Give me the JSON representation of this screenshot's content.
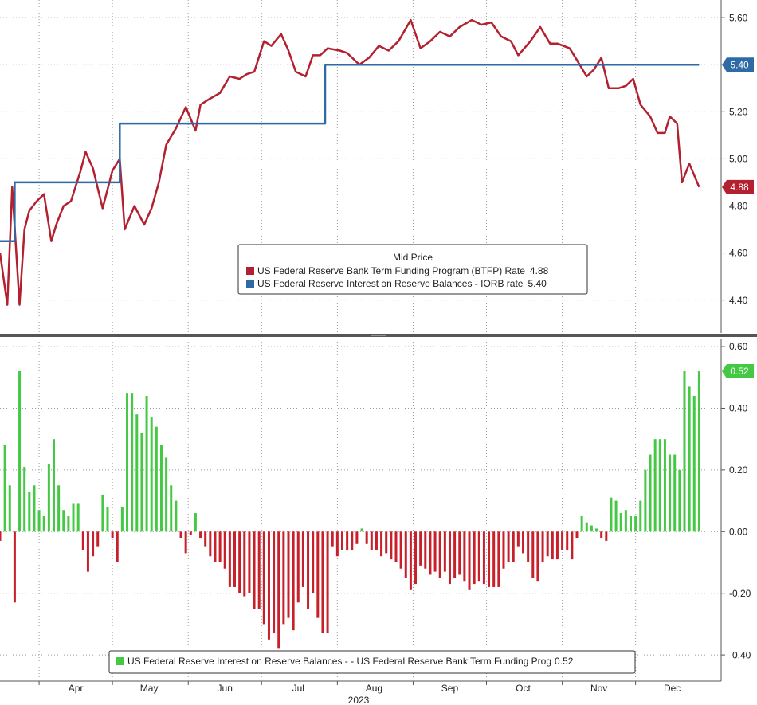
{
  "chart_data": [
    {
      "type": "line",
      "ylim": [
        4.26,
        5.675
      ],
      "yticks": [
        {
          "value": 4.4,
          "label": "4.40"
        },
        {
          "value": 4.6,
          "label": "4.60"
        },
        {
          "value": 4.8,
          "label": "4.80"
        },
        {
          "value": 5.0,
          "label": "5.00"
        },
        {
          "value": 5.2,
          "label": "5.20"
        },
        {
          "value": 5.4,
          "label": "5.40"
        },
        {
          "value": 5.6,
          "label": "5.60"
        }
      ],
      "grid": true,
      "legend_title": "Mid Price",
      "series": [
        {
          "name": "US Federal Reserve Bank Term Funding Program (BTFP) Rate",
          "legend_value": "4.88",
          "color": "#b3202f",
          "x": [
            75,
            78,
            80,
            83,
            85,
            87,
            90,
            93,
            96,
            98,
            101,
            104,
            108,
            110,
            113,
            117,
            121,
            124,
            126,
            130,
            134,
            137,
            140,
            143,
            147,
            151,
            155,
            157,
            160,
            165,
            169,
            173,
            176,
            179,
            183,
            186,
            190,
            193,
            196,
            200,
            203,
            206,
            209,
            214,
            217,
            222,
            226,
            230,
            234,
            238,
            243,
            247,
            251,
            255,
            259,
            263,
            268,
            272,
            276,
            280,
            284,
            287,
            292,
            296,
            300,
            303,
            308,
            311,
            315,
            318,
            321,
            324,
            328,
            331,
            334,
            337,
            341,
            344,
            347,
            349,
            352,
            354,
            357,
            361
          ],
          "values": [
            4.6,
            4.38,
            4.88,
            4.38,
            4.7,
            4.78,
            4.82,
            4.85,
            4.65,
            4.72,
            4.8,
            4.82,
            4.95,
            5.03,
            4.96,
            4.79,
            4.95,
            5.0,
            4.7,
            4.8,
            4.72,
            4.79,
            4.9,
            5.06,
            5.13,
            5.22,
            5.12,
            5.23,
            5.25,
            5.28,
            5.35,
            5.34,
            5.36,
            5.37,
            5.5,
            5.48,
            5.53,
            5.46,
            5.37,
            5.35,
            5.44,
            5.44,
            5.47,
            5.46,
            5.45,
            5.4,
            5.43,
            5.48,
            5.46,
            5.5,
            5.59,
            5.47,
            5.5,
            5.54,
            5.52,
            5.56,
            5.59,
            5.57,
            5.58,
            5.52,
            5.5,
            5.44,
            5.5,
            5.56,
            5.49,
            5.49,
            5.47,
            5.42,
            5.35,
            5.38,
            5.43,
            5.3,
            5.3,
            5.31,
            5.34,
            5.23,
            5.18,
            5.11,
            5.11,
            5.18,
            5.15,
            4.9,
            4.98,
            4.88
          ]
        },
        {
          "name": "US Federal Reserve Interest on Reserve Balances - IORB rate",
          "legend_value": "5.40",
          "color": "#2e6aa6",
          "x": [
            75,
            81,
            81,
            124,
            124,
            208,
            208,
            361
          ],
          "values": [
            4.65,
            4.65,
            4.9,
            4.9,
            5.15,
            5.15,
            5.4,
            5.4
          ]
        }
      ]
    },
    {
      "type": "bar",
      "ylim": [
        -0.485,
        0.626
      ],
      "yticks": [
        {
          "value": -0.4,
          "label": "-0.40"
        },
        {
          "value": -0.2,
          "label": "-0.20"
        },
        {
          "value": 0,
          "label": "0.00"
        },
        {
          "value": 0.2,
          "label": "0.20"
        },
        {
          "value": 0.4,
          "label": "0.40"
        },
        {
          "value": 0.6,
          "label": "0.60"
        }
      ],
      "grid": true,
      "xlim": [
        75,
        370
      ],
      "xticks": [
        {
          "value": 91,
          "label": "Apr"
        },
        {
          "value": 121,
          "label": "May"
        },
        {
          "value": 152,
          "label": "Jun"
        },
        {
          "value": 182,
          "label": "Jul"
        },
        {
          "value": 213,
          "label": "Aug"
        },
        {
          "value": 244,
          "label": "Sep"
        },
        {
          "value": 274,
          "label": "Oct"
        },
        {
          "value": 305,
          "label": "Nov"
        },
        {
          "value": 335,
          "label": "Dec"
        }
      ],
      "xlabel": "2023",
      "series": [
        {
          "name": "US Federal Reserve Interest on Reserve Balances - - US Federal Reserve Bank Term Funding Prog",
          "legend_value": "0.52",
          "color": "#45c945",
          "negative_color": "#c8202b",
          "x": [
            75,
            77,
            79,
            81,
            83,
            85,
            87,
            89,
            91,
            93,
            95,
            97,
            99,
            101,
            103,
            105,
            107,
            109,
            111,
            113,
            115,
            117,
            119,
            121,
            123,
            125,
            127,
            129,
            131,
            133,
            135,
            137,
            139,
            141,
            143,
            145,
            147,
            149,
            151,
            153,
            155,
            157,
            159,
            161,
            163,
            165,
            167,
            169,
            171,
            173,
            175,
            177,
            179,
            181,
            183,
            185,
            187,
            189,
            191,
            193,
            195,
            197,
            199,
            201,
            203,
            205,
            207,
            209,
            211,
            213,
            215,
            217,
            219,
            221,
            223,
            225,
            227,
            229,
            231,
            233,
            235,
            237,
            239,
            241,
            243,
            245,
            247,
            249,
            251,
            253,
            255,
            257,
            259,
            261,
            263,
            265,
            267,
            269,
            271,
            273,
            275,
            277,
            279,
            281,
            283,
            285,
            287,
            289,
            291,
            293,
            295,
            297,
            299,
            301,
            303,
            305,
            307,
            309,
            311,
            313,
            315,
            317,
            319,
            321,
            323,
            325,
            327,
            329,
            331,
            333,
            335,
            337,
            339,
            341,
            343,
            345,
            347,
            349,
            351,
            353,
            355,
            357,
            359,
            361
          ],
          "values": [
            -0.03,
            0.28,
            0.15,
            -0.23,
            0.52,
            0.21,
            0.13,
            0.15,
            0.07,
            0.05,
            0.22,
            0.3,
            0.15,
            0.07,
            0.05,
            0.09,
            0.09,
            -0.06,
            -0.13,
            -0.08,
            -0.05,
            0.12,
            0.08,
            -0.02,
            -0.1,
            0.08,
            0.45,
            0.45,
            0.38,
            0.32,
            0.44,
            0.37,
            0.34,
            0.28,
            0.24,
            0.15,
            0.1,
            -0.02,
            -0.07,
            -0.01,
            0.06,
            -0.02,
            -0.05,
            -0.08,
            -0.1,
            -0.1,
            -0.12,
            -0.18,
            -0.18,
            -0.2,
            -0.21,
            -0.2,
            -0.25,
            -0.25,
            -0.3,
            -0.35,
            -0.33,
            -0.38,
            -0.3,
            -0.28,
            -0.32,
            -0.23,
            -0.18,
            -0.25,
            -0.2,
            -0.28,
            -0.33,
            -0.33,
            -0.05,
            -0.08,
            -0.06,
            -0.06,
            -0.06,
            -0.04,
            0.01,
            -0.04,
            -0.06,
            -0.06,
            -0.08,
            -0.07,
            -0.09,
            -0.1,
            -0.12,
            -0.15,
            -0.19,
            -0.17,
            -0.11,
            -0.12,
            -0.14,
            -0.13,
            -0.15,
            -0.13,
            -0.17,
            -0.15,
            -0.14,
            -0.16,
            -0.19,
            -0.17,
            -0.16,
            -0.17,
            -0.18,
            -0.18,
            -0.18,
            -0.12,
            -0.1,
            -0.1,
            -0.05,
            -0.07,
            -0.1,
            -0.15,
            -0.16,
            -0.1,
            -0.08,
            -0.09,
            -0.09,
            -0.06,
            -0.06,
            -0.09,
            -0.02,
            0.05,
            0.03,
            0.02,
            0.01,
            -0.02,
            -0.03,
            0.11,
            0.1,
            0.06,
            0.07,
            0.05,
            0.05,
            0.1,
            0.2,
            0.25,
            0.3,
            0.3,
            0.3,
            0.25,
            0.25,
            0.2,
            0.52,
            0.47,
            0.44,
            0.52
          ]
        }
      ]
    }
  ]
}
